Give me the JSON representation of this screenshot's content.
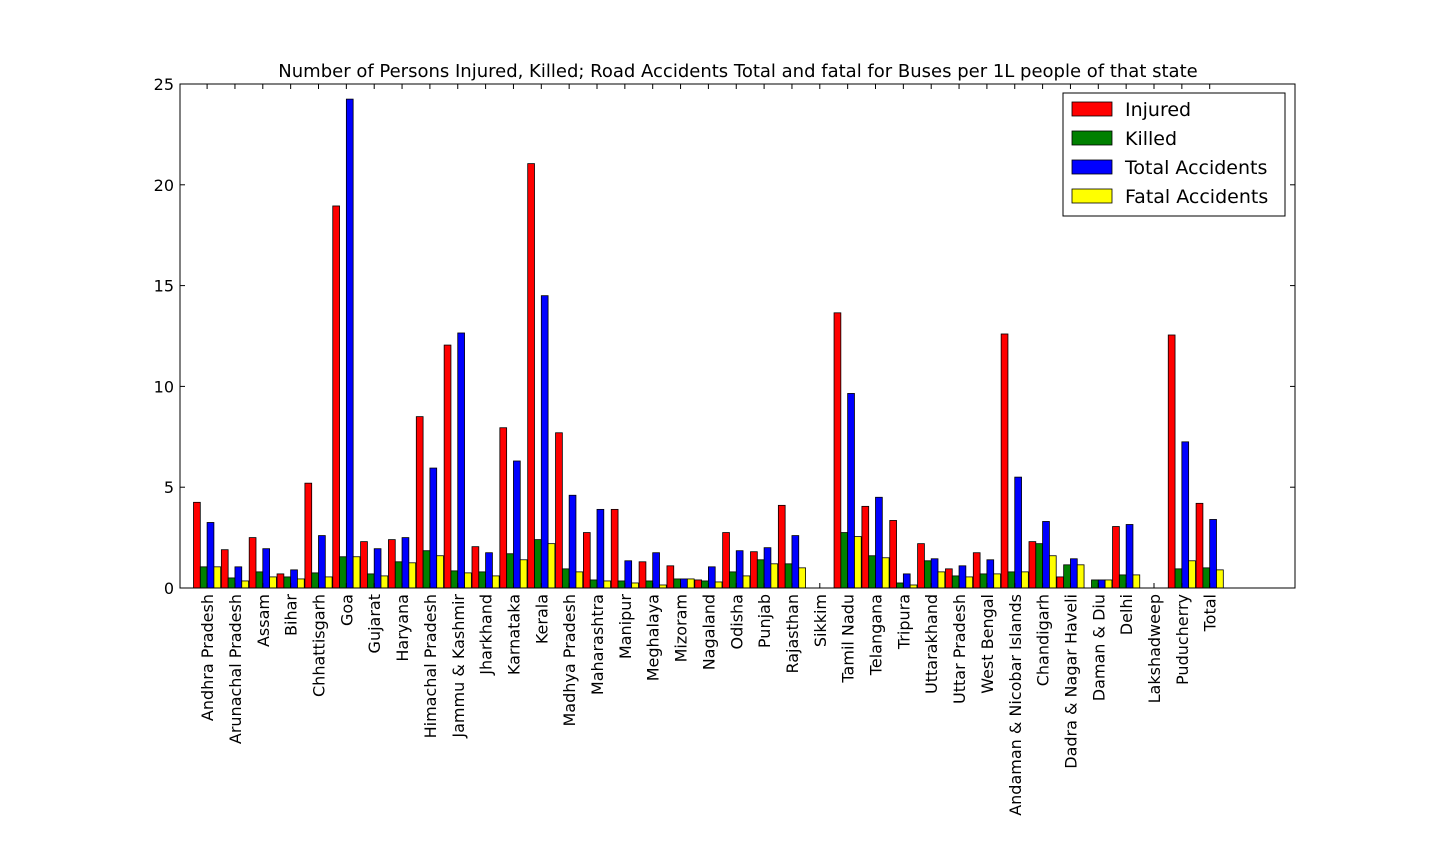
{
  "chart_data": {
    "type": "bar",
    "title": "Number of Persons Injured, Killed; Road Accidents Total and fatal for Buses per 1L people of that state",
    "xlabel": "",
    "ylabel": "",
    "ylim": [
      0,
      25
    ],
    "yticks": [
      0,
      5,
      10,
      15,
      20,
      25
    ],
    "legend_position": "top-right",
    "categories": [
      "Andhra Pradesh",
      "Arunachal Pradesh",
      "Assam",
      "Bihar",
      "Chhattisgarh",
      "Goa",
      "Gujarat",
      "Haryana",
      "Himachal Pradesh",
      "Jammu & Kashmir",
      "Jharkhand",
      "Karnataka",
      "Kerala",
      "Madhya Pradesh",
      "Maharashtra",
      "Manipur",
      "Meghalaya",
      "Mizoram",
      "Nagaland",
      "Odisha",
      "Punjab",
      "Rajasthan",
      "Sikkim",
      "Tamil Nadu",
      "Telangana",
      "Tripura",
      "Uttarakhand",
      "Uttar Pradesh",
      "West Bengal",
      "Andaman & Nicobar Islands",
      "Chandigarh",
      "Dadra & Nagar Haveli",
      "Daman & Diu",
      "Delhi",
      "Lakshadweep",
      "Puducherry",
      "Total"
    ],
    "series": [
      {
        "name": "Injured",
        "color": "#ff0000",
        "values": [
          4.25,
          1.9,
          2.5,
          0.7,
          5.2,
          18.95,
          2.3,
          2.4,
          8.5,
          12.05,
          2.05,
          7.95,
          21.05,
          7.7,
          2.75,
          3.9,
          1.3,
          1.1,
          0.4,
          2.75,
          1.8,
          4.1,
          0,
          13.65,
          4.05,
          3.35,
          2.2,
          0.95,
          1.75,
          12.6,
          2.3,
          0.55,
          0,
          3.05,
          0,
          12.55,
          4.2
        ]
      },
      {
        "name": "Killed",
        "color": "#008000",
        "values": [
          1.05,
          0.5,
          0.8,
          0.55,
          0.75,
          1.55,
          0.7,
          1.3,
          1.85,
          0.85,
          0.8,
          1.7,
          2.4,
          0.95,
          0.4,
          0.35,
          0.35,
          0.45,
          0.35,
          0.8,
          1.4,
          1.2,
          0,
          2.75,
          1.6,
          0.25,
          1.35,
          0.6,
          0.7,
          0.8,
          2.2,
          1.15,
          0.4,
          0.65,
          0,
          0.95,
          1.0
        ]
      },
      {
        "name": "Total Accidents",
        "color": "#0000ff",
        "values": [
          3.25,
          1.05,
          1.95,
          0.9,
          2.6,
          24.25,
          1.95,
          2.5,
          5.95,
          12.65,
          1.75,
          6.3,
          14.5,
          4.6,
          3.9,
          1.35,
          1.75,
          0.45,
          1.05,
          1.85,
          2.0,
          2.6,
          0,
          9.65,
          4.5,
          0.7,
          1.45,
          1.1,
          1.4,
          5.5,
          3.3,
          1.45,
          0.4,
          3.15,
          0,
          7.25,
          3.4
        ]
      },
      {
        "name": "Fatal Accidents",
        "color": "#ffff00",
        "values": [
          1.05,
          0.35,
          0.55,
          0.45,
          0.55,
          1.55,
          0.6,
          1.25,
          1.6,
          0.75,
          0.6,
          1.4,
          2.2,
          0.8,
          0.35,
          0.25,
          0.15,
          0.45,
          0.3,
          0.6,
          1.2,
          1.0,
          0,
          2.55,
          1.5,
          0.15,
          0.8,
          0.55,
          0.7,
          0.8,
          1.6,
          1.15,
          0.4,
          0.65,
          0,
          1.35,
          0.9
        ]
      }
    ]
  }
}
